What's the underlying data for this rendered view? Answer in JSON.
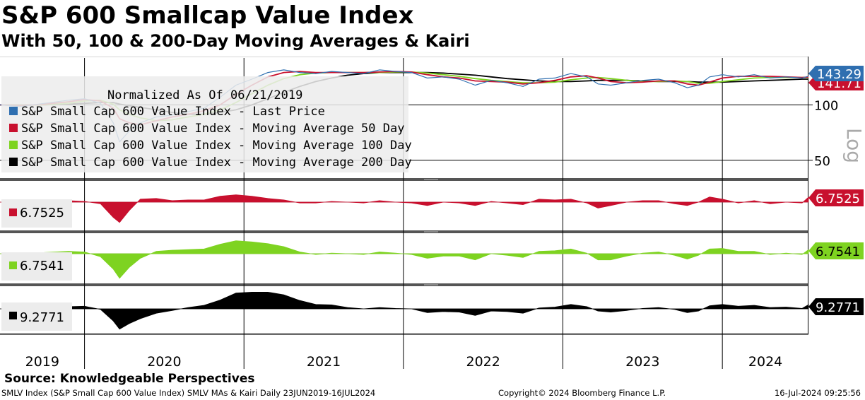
{
  "title": "S&P 600 Smallcap Value Index",
  "subtitle": "With 50, 100 & 200-Day Moving Averages & Kairi",
  "source": "Source: Knowledgeable Perspectives",
  "footer": {
    "left": "SMLV Index (S&P Small Cap 600 Value Index) SMLV MAs & Kairi  Daily 23JUN2019-16JUL2024",
    "center": "Copyright© 2024 Bloomberg Finance L.P.",
    "right": "16-Jul-2024 09:25:56"
  },
  "colors": {
    "price": "#2f6fb0",
    "ma50": "#c8102e",
    "ma100": "#7ed321",
    "ma200": "#000000",
    "grid": "#000000"
  },
  "chart_data": {
    "type": "line",
    "normalized_label": "Normalized As Of 06/21/2019",
    "scale_label": "Log",
    "x_labels": [
      "2019",
      "2020",
      "2021",
      "2022",
      "2023",
      "2024"
    ],
    "x_range": [
      2019.47,
      2024.54
    ],
    "y_range": [
      40,
      180
    ],
    "y_ticks": [
      100,
      50
    ],
    "y_tick_labels": [
      "100",
      "50"
    ],
    "legend": [
      "S&P Small Cap 600 Value Index - Last Price",
      "S&P Small Cap 600 Value Index - Moving Average 50 Day",
      "S&P Small Cap 600 Value Index - Moving Average 100 Day",
      "S&P Small Cap 600 Value Index - Moving Average 200 Day"
    ],
    "x": [
      2019.47,
      2019.6,
      2019.75,
      2019.9,
      2020.0,
      2020.1,
      2020.18,
      2020.22,
      2020.28,
      2020.35,
      2020.45,
      2020.55,
      2020.65,
      2020.75,
      2020.85,
      2020.95,
      2021.05,
      2021.15,
      2021.25,
      2021.35,
      2021.45,
      2021.55,
      2021.65,
      2021.75,
      2021.85,
      2021.95,
      2022.05,
      2022.15,
      2022.25,
      2022.35,
      2022.45,
      2022.55,
      2022.65,
      2022.75,
      2022.85,
      2022.95,
      2023.05,
      2023.15,
      2023.22,
      2023.3,
      2023.4,
      2023.5,
      2023.6,
      2023.7,
      2023.78,
      2023.85,
      2023.92,
      2024.0,
      2024.1,
      2024.2,
      2024.3,
      2024.4,
      2024.5,
      2024.54
    ],
    "series": [
      {
        "name": "Last Price",
        "values": [
          100,
          98,
          102,
          106,
          108,
          102,
          80,
          63,
          72,
          80,
          86,
          88,
          92,
          96,
          110,
          128,
          138,
          150,
          155,
          150,
          148,
          152,
          150,
          148,
          155,
          152,
          150,
          140,
          142,
          138,
          128,
          136,
          132,
          126,
          138,
          140,
          148,
          142,
          130,
          128,
          132,
          136,
          138,
          132,
          124,
          128,
          142,
          146,
          142,
          146,
          140,
          142,
          140,
          143.29
        ]
      },
      {
        "name": "Moving Average 50 Day",
        "values": [
          100,
          99,
          101,
          104,
          107,
          105,
          96,
          84,
          80,
          78,
          82,
          86,
          89,
          93,
          100,
          114,
          128,
          142,
          150,
          152,
          150,
          150,
          150,
          150,
          151,
          152,
          151,
          146,
          142,
          140,
          135,
          134,
          133,
          130,
          132,
          136,
          142,
          144,
          140,
          134,
          132,
          133,
          135,
          135,
          130,
          128,
          133,
          140,
          143,
          143,
          143,
          142,
          141,
          141.71
        ]
      },
      {
        "name": "Moving Average 100 Day",
        "values": [
          100,
          99.5,
          100,
          102,
          105,
          106,
          101,
          94,
          89,
          85,
          82,
          83,
          86,
          89,
          94,
          103,
          115,
          128,
          139,
          146,
          149,
          150,
          150,
          150,
          150,
          151,
          151,
          149,
          146,
          143,
          139,
          136,
          134,
          132,
          132,
          133,
          137,
          140,
          141,
          139,
          136,
          134,
          134,
          135,
          134,
          131,
          131,
          134,
          137,
          140,
          141,
          141,
          141,
          141
        ]
      },
      {
        "name": "Moving Average 200 Day",
        "values": [
          100,
          99.8,
          100,
          101,
          102,
          103,
          103,
          101,
          99,
          97,
          94,
          91,
          89,
          89,
          91,
          94,
          100,
          108,
          117,
          126,
          134,
          140,
          145,
          148,
          150,
          150,
          150,
          150,
          149,
          147,
          145,
          142,
          139,
          137,
          135,
          134,
          134,
          135,
          136,
          136,
          136,
          135,
          134,
          134,
          134,
          133,
          133,
          133,
          134,
          135,
          136,
          137,
          138,
          138
        ]
      }
    ],
    "last_values": {
      "price": "143.29",
      "ma50": "141.71"
    },
    "kairi_panels": [
      {
        "name": "Kairi 50 Day",
        "color": "#c8102e",
        "last": "6.7525",
        "legend_value": "6.7525",
        "range": [
          -30,
          25
        ],
        "values": [
          0,
          -1,
          1,
          2,
          1,
          -2,
          -18,
          -24,
          -10,
          4,
          5,
          2,
          3,
          3,
          8,
          10,
          8,
          5,
          3,
          -1,
          -1,
          1,
          0,
          -1,
          2,
          0,
          -1,
          -4,
          0,
          -1,
          -4,
          1,
          -1,
          -3,
          4,
          3,
          4,
          -1,
          -7,
          -4,
          0,
          2,
          2,
          -2,
          -4,
          0,
          7,
          4,
          -1,
          2,
          -2,
          0,
          -1,
          6.75
        ]
      },
      {
        "name": "Kairi 100 Day",
        "color": "#7ed321",
        "last": "6.7541",
        "legend_value": "6.7541",
        "range": [
          -35,
          30
        ],
        "values": [
          0,
          -1,
          2,
          4,
          3,
          -4,
          -20,
          -32,
          -18,
          -6,
          4,
          6,
          7,
          8,
          16,
          22,
          20,
          17,
          12,
          3,
          -1,
          1,
          0,
          -1,
          3,
          1,
          -1,
          -6,
          -3,
          -3,
          -8,
          0,
          -2,
          -5,
          4,
          5,
          8,
          1,
          -8,
          -8,
          -3,
          1,
          3,
          -2,
          -7,
          -2,
          8,
          9,
          4,
          4,
          -1,
          1,
          -1,
          6.75
        ]
      },
      {
        "name": "Kairi 200 Day",
        "color": "#000000",
        "last": "9.2771",
        "legend_value": "9.2771",
        "range": [
          -40,
          45
        ],
        "values": [
          0,
          -2,
          2,
          5,
          6,
          -1,
          -22,
          -37,
          -27,
          -18,
          -8,
          -3,
          3,
          8,
          20,
          36,
          38,
          38,
          32,
          19,
          10,
          9,
          3,
          0,
          3,
          1,
          0,
          -7,
          -5,
          -6,
          -12,
          -4,
          -5,
          -8,
          2,
          4,
          10,
          5,
          -4,
          -6,
          -3,
          1,
          3,
          -1,
          -7,
          -4,
          7,
          10,
          6,
          8,
          3,
          4,
          1,
          9.28
        ]
      }
    ]
  }
}
